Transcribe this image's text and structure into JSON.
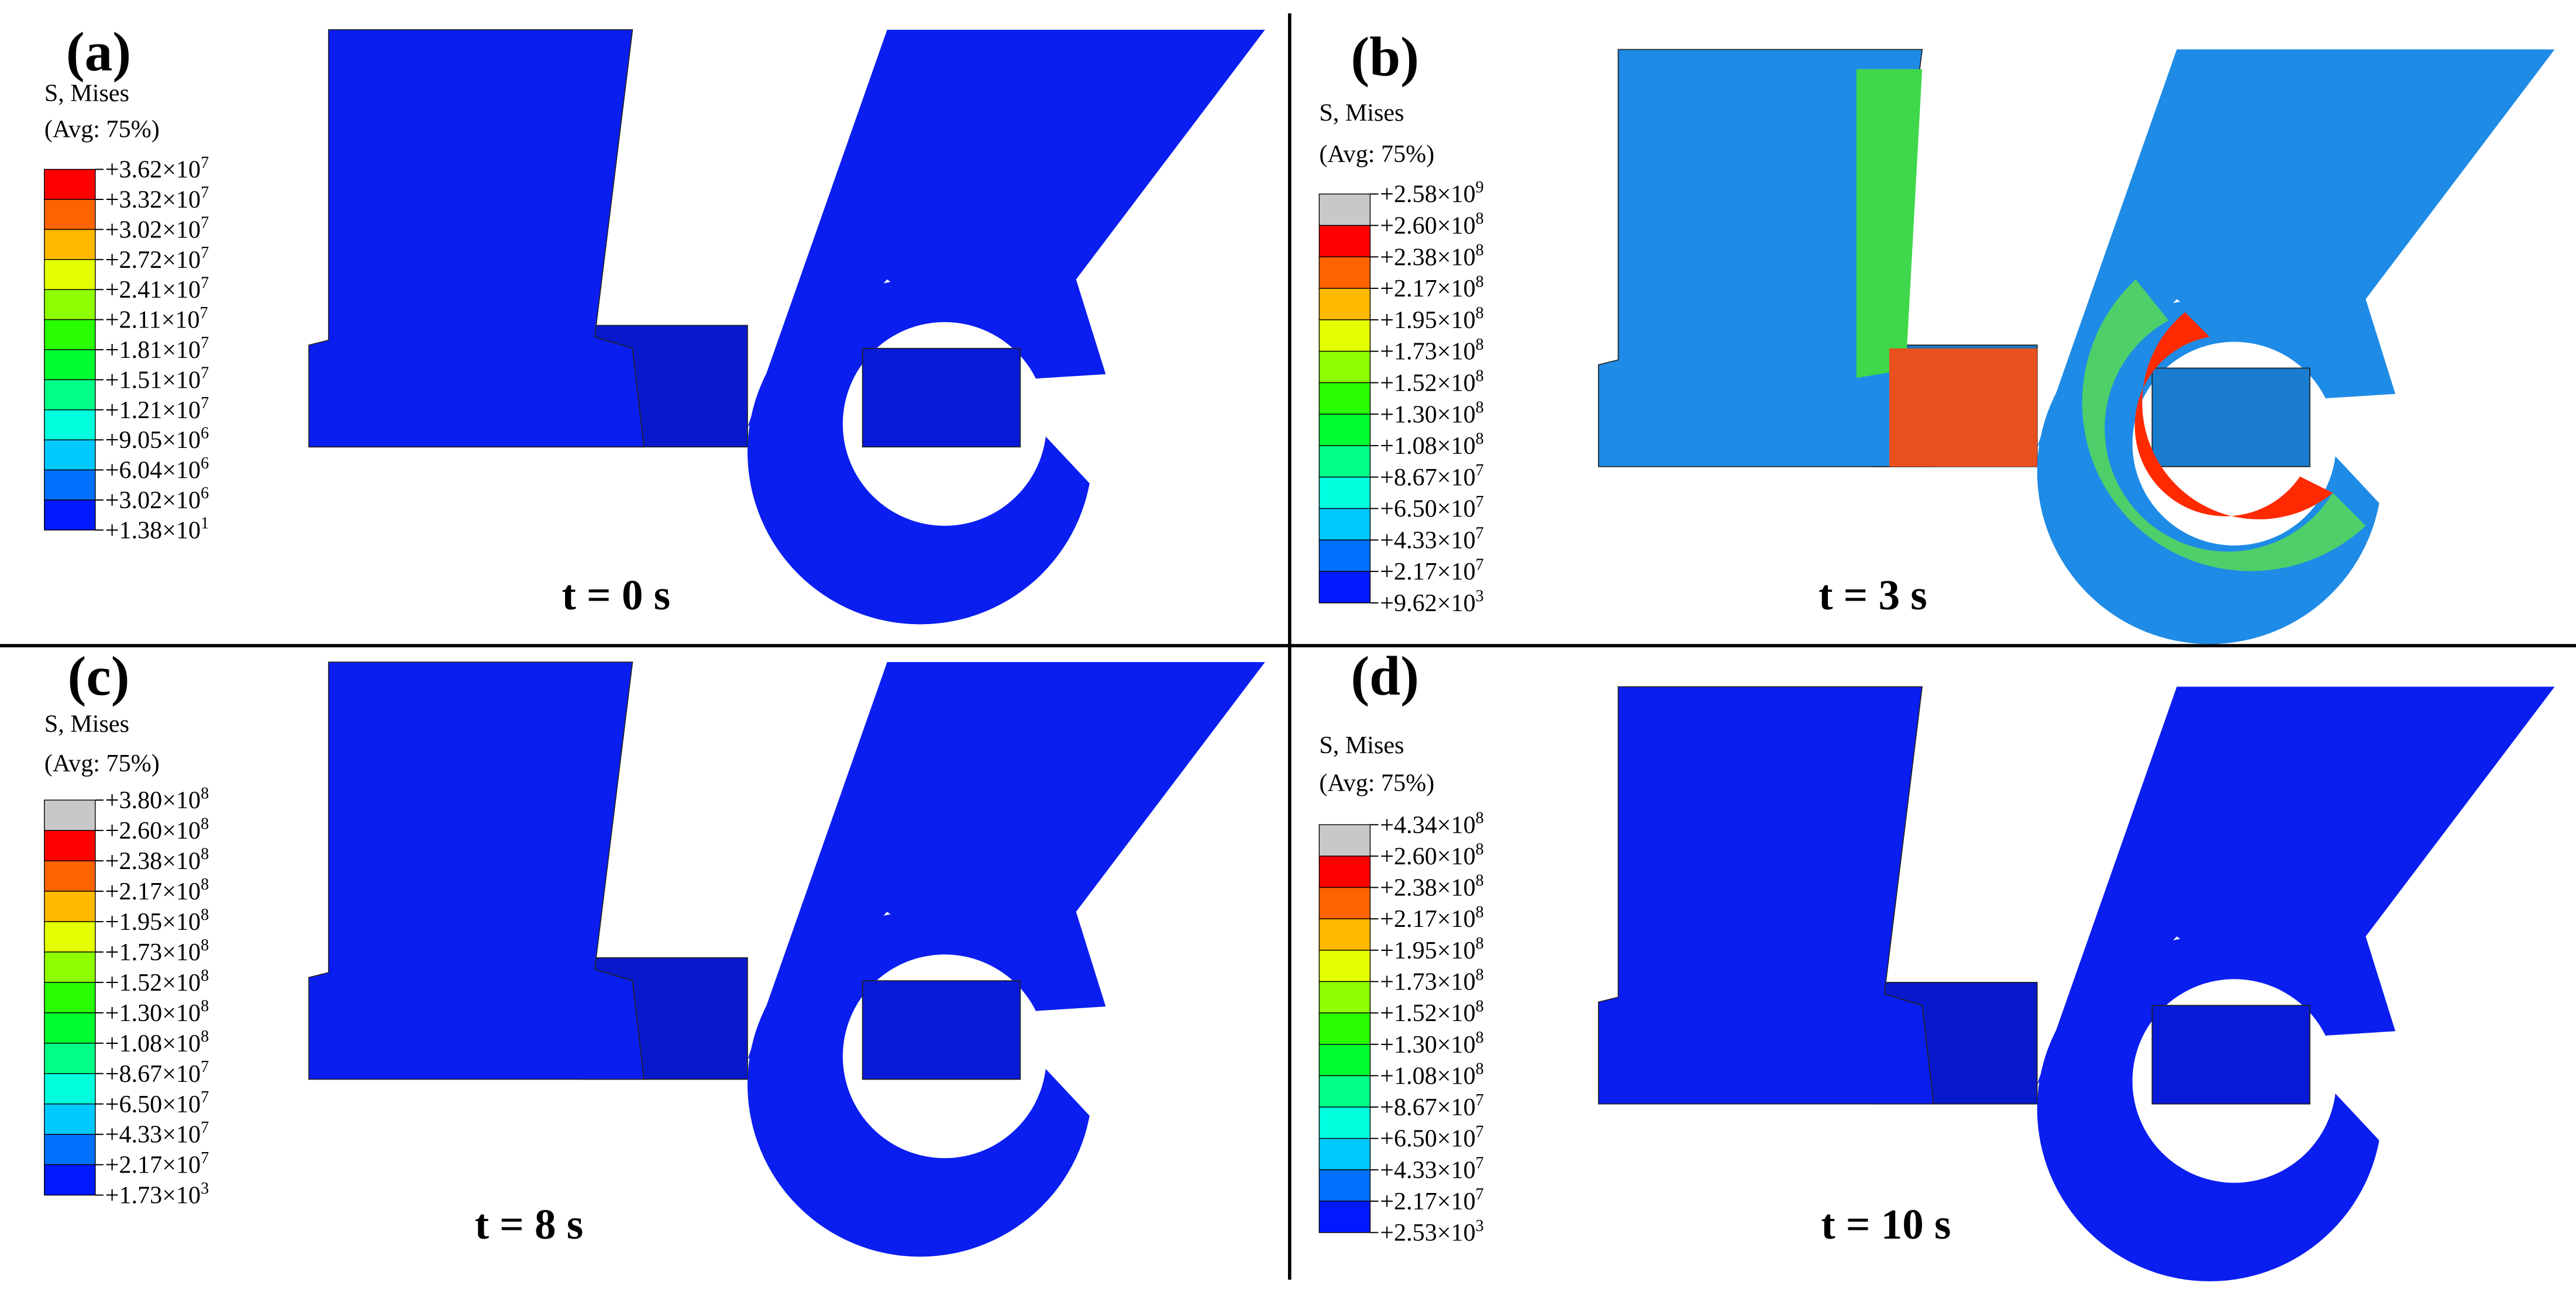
{
  "panels": [
    {
      "label": "(a)",
      "time": "t = 0 s",
      "legend_title": "S, Mises",
      "legend_avg": "(Avg: 75%)",
      "legend": [
        {
          "base": "+3.62×10",
          "exp": "7"
        },
        {
          "base": "+3.32×10",
          "exp": "7"
        },
        {
          "base": "+3.02×10",
          "exp": "7"
        },
        {
          "base": "+2.72×10",
          "exp": "7"
        },
        {
          "base": "+2.41×10",
          "exp": "7"
        },
        {
          "base": "+2.11×10",
          "exp": "7"
        },
        {
          "base": "+1.81×10",
          "exp": "7"
        },
        {
          "base": "+1.51×10",
          "exp": "7"
        },
        {
          "base": "+1.21×10",
          "exp": "7"
        },
        {
          "base": "+9.05×10",
          "exp": "6"
        },
        {
          "base": "+6.04×10",
          "exp": "6"
        },
        {
          "base": "+3.02×10",
          "exp": "6"
        },
        {
          "base": "+1.38×10",
          "exp": "1"
        }
      ],
      "colors": [
        "#ff0000",
        "#ff6300",
        "#ffb900",
        "#e3ff00",
        "#8eff00",
        "#29ff00",
        "#00ff2e",
        "#00ff87",
        "#00ffdc",
        "#00c9ff",
        "#0070ff",
        "#0019ff"
      ]
    },
    {
      "label": "(b)",
      "time": "t = 3 s",
      "legend_title": "S, Mises",
      "legend_avg": "(Avg: 75%)",
      "legend": [
        {
          "base": "+2.58×10",
          "exp": "9"
        },
        {
          "base": "+2.60×10",
          "exp": "8"
        },
        {
          "base": "+2.38×10",
          "exp": "8"
        },
        {
          "base": "+2.17×10",
          "exp": "8"
        },
        {
          "base": "+1.95×10",
          "exp": "8"
        },
        {
          "base": "+1.73×10",
          "exp": "8"
        },
        {
          "base": "+1.52×10",
          "exp": "8"
        },
        {
          "base": "+1.30×10",
          "exp": "8"
        },
        {
          "base": "+1.08×10",
          "exp": "8"
        },
        {
          "base": "+8.67×10",
          "exp": "7"
        },
        {
          "base": "+6.50×10",
          "exp": "7"
        },
        {
          "base": "+4.33×10",
          "exp": "7"
        },
        {
          "base": "+2.17×10",
          "exp": "7"
        },
        {
          "base": "+9.62×10",
          "exp": "3"
        }
      ],
      "colors": [
        "#c8c8c8",
        "#ff0000",
        "#ff6300",
        "#ffb900",
        "#e3ff00",
        "#8eff00",
        "#29ff00",
        "#00ff2e",
        "#00ff87",
        "#00ffdc",
        "#00c9ff",
        "#0070ff",
        "#0019ff"
      ]
    },
    {
      "label": "(c)",
      "time": "t = 8 s",
      "legend_title": "S, Mises",
      "legend_avg": "(Avg: 75%)",
      "legend": [
        {
          "base": "+3.80×10",
          "exp": "8"
        },
        {
          "base": "+2.60×10",
          "exp": "8"
        },
        {
          "base": "+2.38×10",
          "exp": "8"
        },
        {
          "base": "+2.17×10",
          "exp": "8"
        },
        {
          "base": "+1.95×10",
          "exp": "8"
        },
        {
          "base": "+1.73×10",
          "exp": "8"
        },
        {
          "base": "+1.52×10",
          "exp": "8"
        },
        {
          "base": "+1.30×10",
          "exp": "8"
        },
        {
          "base": "+1.08×10",
          "exp": "8"
        },
        {
          "base": "+8.67×10",
          "exp": "7"
        },
        {
          "base": "+6.50×10",
          "exp": "7"
        },
        {
          "base": "+4.33×10",
          "exp": "7"
        },
        {
          "base": "+2.17×10",
          "exp": "7"
        },
        {
          "base": "+1.73×10",
          "exp": "3"
        }
      ],
      "colors": [
        "#c8c8c8",
        "#ff0000",
        "#ff6300",
        "#ffb900",
        "#e3ff00",
        "#8eff00",
        "#29ff00",
        "#00ff2e",
        "#00ff87",
        "#00ffdc",
        "#00c9ff",
        "#0070ff",
        "#0019ff"
      ]
    },
    {
      "label": "(d)",
      "time": "t = 10 s",
      "legend_title": "S, Mises",
      "legend_avg": "(Avg: 75%)",
      "legend": [
        {
          "base": "+4.34×10",
          "exp": "8"
        },
        {
          "base": "+2.60×10",
          "exp": "8"
        },
        {
          "base": "+2.38×10",
          "exp": "8"
        },
        {
          "base": "+2.17×10",
          "exp": "8"
        },
        {
          "base": "+1.95×10",
          "exp": "8"
        },
        {
          "base": "+1.73×10",
          "exp": "8"
        },
        {
          "base": "+1.52×10",
          "exp": "8"
        },
        {
          "base": "+1.30×10",
          "exp": "8"
        },
        {
          "base": "+1.08×10",
          "exp": "8"
        },
        {
          "base": "+8.67×10",
          "exp": "7"
        },
        {
          "base": "+6.50×10",
          "exp": "7"
        },
        {
          "base": "+4.33×10",
          "exp": "7"
        },
        {
          "base": "+2.17×10",
          "exp": "7"
        },
        {
          "base": "+2.53×10",
          "exp": "3"
        }
      ],
      "colors": [
        "#c8c8c8",
        "#ff0000",
        "#ff6300",
        "#ffb900",
        "#e3ff00",
        "#8eff00",
        "#29ff00",
        "#00ff2e",
        "#00ff87",
        "#00ffdc",
        "#00c9ff",
        "#0070ff",
        "#0019ff"
      ]
    }
  ]
}
